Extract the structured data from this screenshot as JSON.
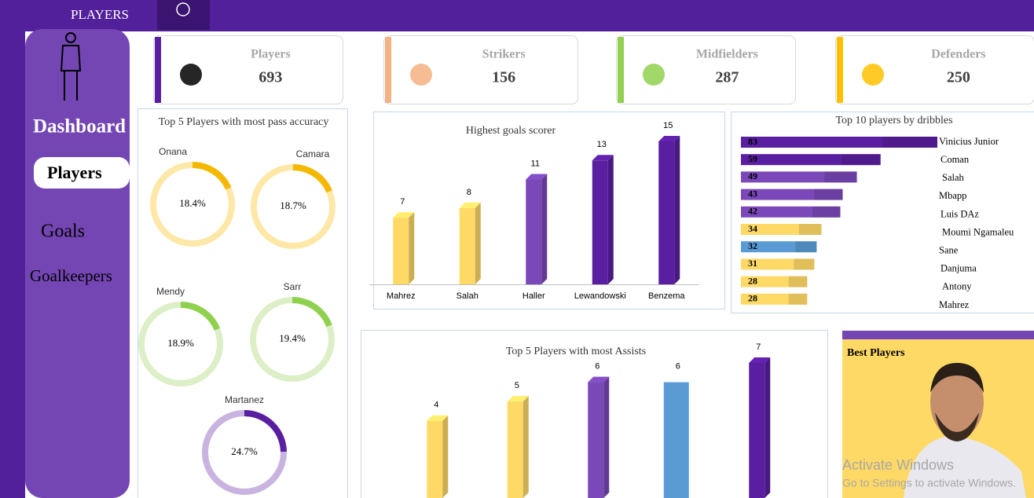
{
  "header": {
    "title": "PLAYERS"
  },
  "nav": [
    "Dashboard",
    "Players",
    "Goals",
    "Goalkeepers"
  ],
  "kpis": [
    {
      "label": "Players",
      "value": 693,
      "color": "#5a1fa0"
    },
    {
      "label": "Strikers",
      "value": 156,
      "color": "#f4b183"
    },
    {
      "label": "Midfielders",
      "value": 287,
      "color": "#92d050"
    },
    {
      "label": "Defenders",
      "value": 250,
      "color": "#ffc000"
    }
  ],
  "chart_data": [
    {
      "type": "donut",
      "title": "Top 5 Players with most pass accuracy",
      "categories": [
        "Onana",
        "Camara",
        "Mendy",
        "Sarr",
        "Martanez"
      ],
      "values": [
        18.4,
        18.7,
        18.9,
        19.4,
        24.7
      ],
      "value_labels": [
        "18.4%",
        "18.7%",
        "18.9%",
        "19.4%",
        "24.7%"
      ],
      "colors": [
        "#f5b800",
        "#f5b800",
        "#8fd14f",
        "#8fd14f",
        "#5a1fa0"
      ],
      "track_colors": [
        "#fde8a8",
        "#fde8a8",
        "#dcefc7",
        "#dcefc7",
        "#c9b3e0"
      ]
    },
    {
      "type": "bar3d",
      "title": "Highest goals scorer",
      "categories": [
        "Mahrez",
        "Salah",
        "Haller",
        "Lewandowski",
        "Benzema"
      ],
      "values": [
        7,
        8,
        11,
        13,
        15
      ],
      "colors": [
        "#ffd966",
        "#ffd966",
        "#7a48b8",
        "#5a1fa0",
        "#5a1fa0"
      ]
    },
    {
      "type": "hbar",
      "title": "Top 10 players by dribbles",
      "categories": [
        "Vinicius Junior",
        "Coman",
        "Salah",
        "Mbapp",
        "Luis DAz",
        "Moumi Ngamaleu",
        "Sane",
        "Danjuma",
        "Antony",
        "Mahrez"
      ],
      "values": [
        83,
        59,
        49,
        43,
        42,
        34,
        32,
        31,
        28,
        28
      ],
      "colors": [
        "#5a1fa0",
        "#5a1fa0",
        "#7a48b8",
        "#7a48b8",
        "#7a48b8",
        "#ffd966",
        "#5b9bd5",
        "#ffd966",
        "#ffd966",
        "#ffd966"
      ]
    },
    {
      "type": "bar3d",
      "title": "Top 5 Players with most Assists",
      "values": [
        4,
        5,
        6,
        6,
        7
      ],
      "colors": [
        "#ffd966",
        "#ffd966",
        "#7a48b8",
        "#5b9bd5",
        "#5a1fa0"
      ],
      "flat": [
        false,
        false,
        false,
        true,
        false
      ]
    }
  ],
  "best_players": {
    "title": "Best Players"
  },
  "watermark": {
    "title": "Activate Windows",
    "subtitle": "Go to Settings to activate Windows."
  }
}
